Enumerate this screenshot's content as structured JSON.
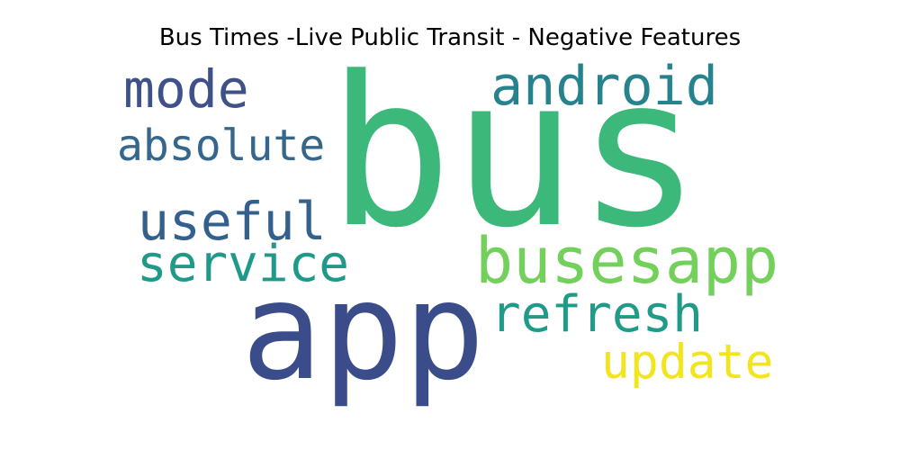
{
  "chart_data": {
    "type": "wordcloud",
    "title": "Bus Times -Live Public Transit - Negative Features",
    "words": [
      {
        "text": "bus",
        "weight": 1.0,
        "color": "#3bb87a"
      },
      {
        "text": "app",
        "weight": 0.78,
        "color": "#3b4c8b"
      },
      {
        "text": "busesapp",
        "weight": 0.45,
        "color": "#72d05b"
      },
      {
        "text": "android",
        "weight": 0.38,
        "color": "#26838e"
      },
      {
        "text": "mode",
        "weight": 0.36,
        "color": "#3e5189"
      },
      {
        "text": "useful",
        "weight": 0.36,
        "color": "#34608d"
      },
      {
        "text": "service",
        "weight": 0.35,
        "color": "#1f9a8a"
      },
      {
        "text": "refresh",
        "weight": 0.35,
        "color": "#209b87"
      },
      {
        "text": "update",
        "weight": 0.33,
        "color": "#f2e51d"
      },
      {
        "text": "absolute",
        "weight": 0.3,
        "color": "#35678d"
      }
    ]
  }
}
